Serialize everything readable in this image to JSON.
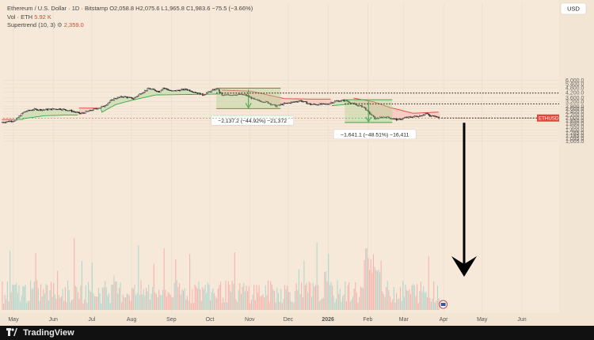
{
  "legend": {
    "symbol": "Ethereum / U.S. Dollar · 1D · Bitstamp",
    "ohlc": "O2,058.8  H2,075.6  L1,965.8  C1,983.6  −75.5 (−3.66%)",
    "volume_label": "Vol · ETH",
    "volume_value": "5.92 K",
    "supertrend_label": "Supertrend (10, 3)",
    "supertrend_value": "2,359.0"
  },
  "currency_label": "USD",
  "footer": {
    "brand": "TradingView"
  },
  "chart_data": {
    "type": "candlestick",
    "pair": "ETHUSD",
    "y_axis": {
      "scale": "log",
      "ticks": [
        6000,
        5400,
        4800,
        4200,
        3600,
        3200,
        2800,
        2600,
        2400,
        2200,
        2000,
        1850,
        1690,
        1550,
        1400,
        1285,
        1185,
        1095,
        1005
      ],
      "tick_labels": [
        "6,000.0",
        "5,400.0",
        "4,800.0",
        "4,200.0",
        "3,600.0",
        "3,200.0",
        "2,800.0",
        "2,600.0",
        "2,400.0",
        "2,200.0",
        "2,000.0",
        "1,850.0",
        "1,690.0",
        "1,550.0",
        "1,400.0",
        "1,285.0",
        "1,185.0",
        "1,095.0",
        "1,005.0"
      ]
    },
    "x_axis": {
      "months": [
        "May",
        "Jun",
        "Jul",
        "Aug",
        "Sep",
        "Oct",
        "Nov",
        "Dec",
        "2026",
        "Feb",
        "Mar",
        "Apr",
        "May",
        "Jun"
      ],
      "range": [
        "2025-04-23",
        "2026-06-30"
      ]
    },
    "price_path": [
      [
        "2025-04-22",
        1750
      ],
      [
        "2025-05-02",
        1850
      ],
      [
        "2025-05-09",
        2380
      ],
      [
        "2025-05-16",
        2550
      ],
      [
        "2025-05-24",
        2530
      ],
      [
        "2025-06-05",
        2600
      ],
      [
        "2025-06-13",
        2480
      ],
      [
        "2025-06-22",
        2250
      ],
      [
        "2025-06-30",
        2480
      ],
      [
        "2025-07-10",
        2800
      ],
      [
        "2025-07-18",
        3500
      ],
      [
        "2025-07-25",
        3720
      ],
      [
        "2025-08-02",
        3500
      ],
      [
        "2025-08-09",
        4200
      ],
      [
        "2025-08-14",
        4700
      ],
      [
        "2025-08-22",
        4300
      ],
      [
        "2025-08-25",
        4800
      ],
      [
        "2025-09-01",
        4350
      ],
      [
        "2025-09-12",
        4600
      ],
      [
        "2025-09-25",
        3900
      ],
      [
        "2025-10-06",
        4700
      ],
      [
        "2025-10-10",
        3850
      ],
      [
        "2025-10-20",
        3950
      ],
      [
        "2025-10-28",
        3900
      ],
      [
        "2025-11-05",
        3350
      ],
      [
        "2025-11-14",
        3150
      ],
      [
        "2025-11-21",
        2800
      ],
      [
        "2025-11-27",
        3000
      ],
      [
        "2025-12-04",
        3150
      ],
      [
        "2025-12-10",
        3300
      ],
      [
        "2025-12-18",
        2950
      ],
      [
        "2025-12-31",
        2970
      ],
      [
        "2026-01-06",
        3250
      ],
      [
        "2026-01-14",
        3330
      ],
      [
        "2026-01-21",
        2950
      ],
      [
        "2026-01-28",
        2750
      ],
      [
        "2026-02-01",
        2350
      ],
      [
        "2026-02-06",
        1950
      ],
      [
        "2026-02-14",
        2050
      ],
      [
        "2026-02-24",
        1880
      ],
      [
        "2026-03-02",
        2000
      ],
      [
        "2026-03-09",
        2070
      ],
      [
        "2026-03-14",
        2130
      ],
      [
        "2026-03-18",
        2280
      ],
      [
        "2026-03-21",
        2080
      ],
      [
        "2026-03-25",
        2130
      ],
      [
        "2026-03-28",
        1983.6
      ]
    ],
    "supertrend": [
      [
        "2025-04-22",
        1900
      ],
      [
        "2025-05-08",
        1900
      ],
      [
        "2025-05-09",
        1950
      ],
      [
        "2025-05-25",
        2120
      ],
      [
        "2025-06-10",
        2160
      ],
      [
        "2025-06-20",
        2160
      ],
      [
        "2025-06-21",
        2650
      ],
      [
        "2025-07-08",
        2650
      ],
      [
        "2025-07-09",
        2350
      ],
      [
        "2025-07-20",
        2950
      ],
      [
        "2025-08-02",
        3350
      ],
      [
        "2025-08-12",
        3650
      ],
      [
        "2025-08-20",
        3900
      ],
      [
        "2025-09-15",
        3950
      ],
      [
        "2025-10-09",
        4000
      ],
      [
        "2025-10-10",
        4500
      ],
      [
        "2025-11-02",
        4350
      ],
      [
        "2025-11-15",
        3900
      ],
      [
        "2025-11-28",
        3500
      ],
      [
        "2025-12-20",
        3450
      ],
      [
        "2026-01-03",
        3450
      ],
      [
        "2026-01-04",
        2850
      ],
      [
        "2026-01-20",
        3000
      ],
      [
        "2026-01-21",
        3550
      ],
      [
        "2026-02-05",
        3200
      ],
      [
        "2026-02-18",
        2700
      ],
      [
        "2026-03-08",
        2280
      ],
      [
        "2026-03-28",
        2359
      ]
    ],
    "supertrend_value": 2359,
    "levels": [
      {
        "value": 4114.3,
        "label": "4,114.3"
      },
      {
        "value": 3000.0,
        "label": "3,000.0"
      }
    ],
    "last_price": {
      "value": 1983.6,
      "label": "1,983.6",
      "symbol": "ETHUSD",
      "countdown": "05:48:21"
    },
    "reference_price": {
      "value": 1986.5,
      "label": "1,986.5"
    },
    "measures": [
      {
        "from_date": "2025-10-06",
        "to_date": "2025-11-25",
        "from_value": 4750,
        "to_value": 2613,
        "label": "−2,137.2 (−44.92%) −21,372"
      },
      {
        "from_date": "2026-01-14",
        "to_date": "2026-02-20",
        "from_value": 3384,
        "to_value": 1742,
        "label": "−1,641.1 (−48.51%) −16,411"
      }
    ]
  }
}
